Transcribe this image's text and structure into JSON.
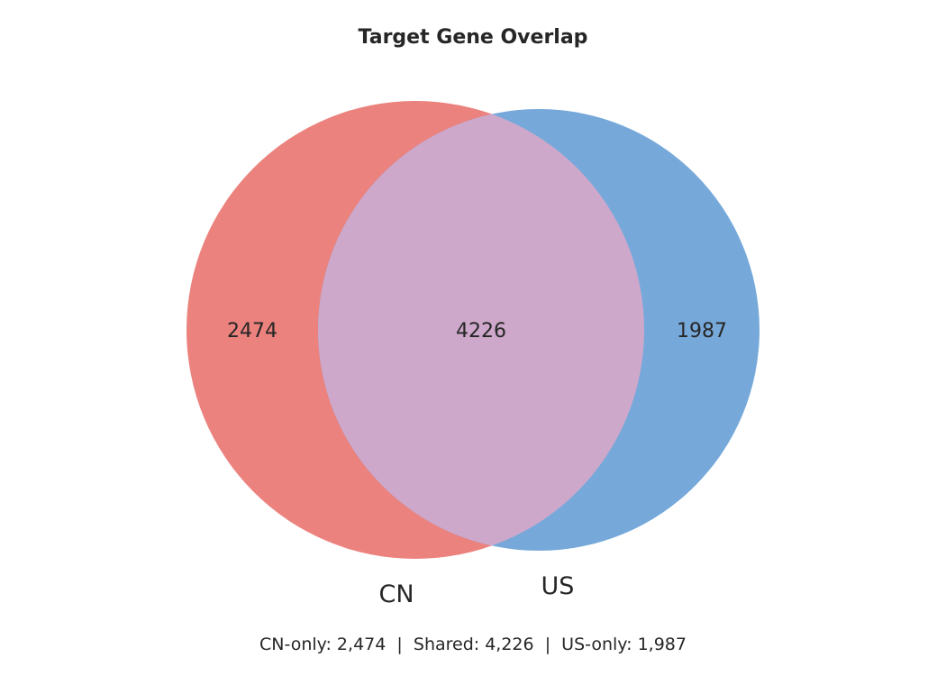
{
  "chart_data": {
    "type": "venn",
    "title": "Target Gene Overlap",
    "sets": [
      {
        "name": "CN",
        "only": 2474,
        "color": "#EB827E"
      },
      {
        "name": "US",
        "only": 1987,
        "color": "#76A9DA"
      }
    ],
    "intersection": {
      "value": 4226,
      "color": "#CEA8CA"
    },
    "labels": {
      "cn_only": "2474",
      "shared": "4226",
      "us_only": "1987"
    },
    "footer": "CN-only: 2,474  |  Shared: 4,226  |  US-only: 1,987"
  }
}
